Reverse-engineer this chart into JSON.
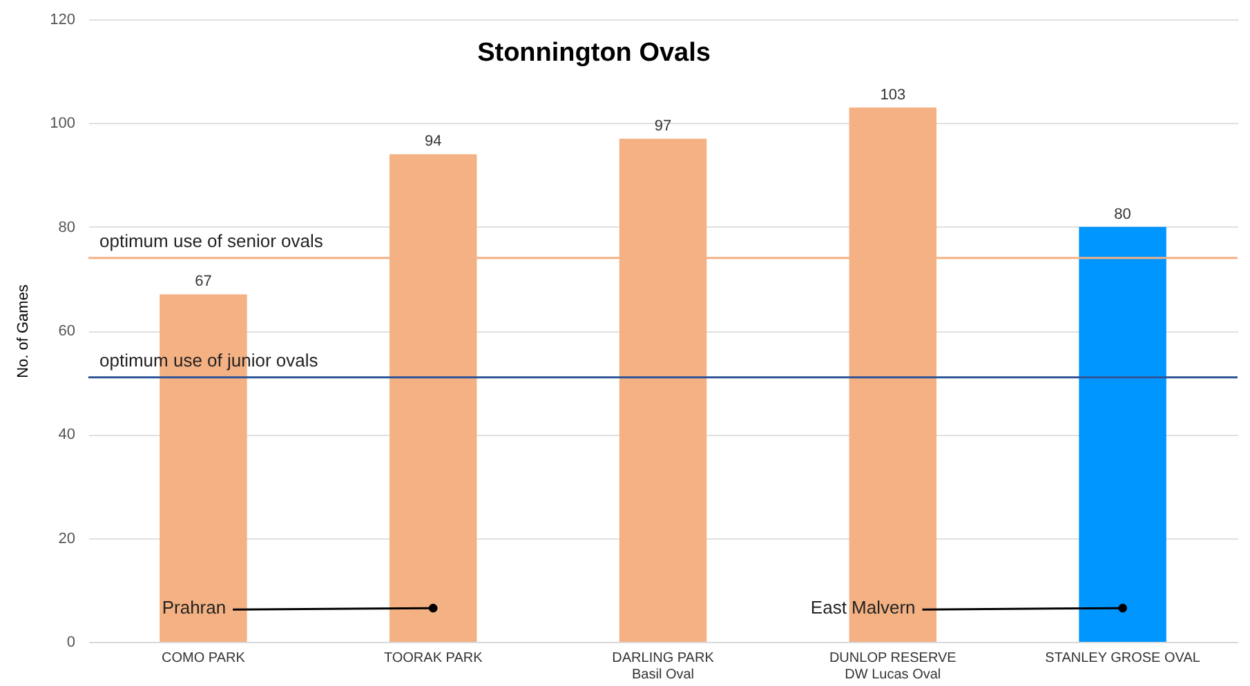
{
  "chart_data": {
    "type": "bar",
    "title": "Stonnington Ovals",
    "ylabel": "No. of Games",
    "categories": [
      "COMO PARK",
      "TOORAK PARK",
      "DARLING PARK\nBasil Oval",
      "DUNLOP RESERVE\nDW Lucas Oval",
      "STANLEY GROSE OVAL"
    ],
    "values": [
      67,
      94,
      97,
      103,
      80
    ],
    "colors": [
      "#f4b183",
      "#f4b183",
      "#f4b183",
      "#f4b183",
      "#0096ff"
    ],
    "data_labels": true,
    "ylim": [
      0,
      120
    ],
    "yticks": [
      0,
      20,
      40,
      60,
      80,
      100,
      120
    ],
    "grid": "y",
    "ref_lines": [
      {
        "axis": "y",
        "value": 74,
        "label": "optimum use of senior ovals",
        "color": "#f4b183"
      },
      {
        "axis": "y",
        "value": 51,
        "label": "optimum use of junior ovals",
        "color": "#2f5597"
      }
    ],
    "annotations": [
      {
        "text": "Prahran",
        "x": "TOORAK PARK",
        "y": 6.5
      },
      {
        "text": "East Malvern",
        "x": "STANLEY GROSE OVAL",
        "y": 6.5
      }
    ]
  }
}
